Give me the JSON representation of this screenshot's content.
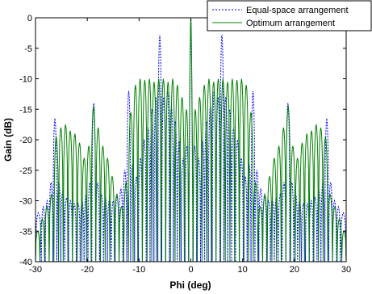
{
  "chart_data": {
    "type": "line",
    "title": "",
    "xlabel": "Phi (deg)",
    "ylabel": "Gain (dB)",
    "xlim": [
      -30,
      30
    ],
    "ylim": [
      -40,
      0
    ],
    "xticks": [
      "-30",
      "-20",
      "-10",
      "0",
      "10",
      "20",
      "30"
    ],
    "yticks": [
      "0",
      "-5",
      "-10",
      "-15",
      "-20",
      "-25",
      "-30",
      "-35",
      "-40"
    ],
    "grid": false,
    "legend_position": "top-right",
    "series": [
      {
        "name": "Equal-space arrangement",
        "style": "dashed",
        "color": "#0000ff",
        "main_lobe": {
          "peak": 0,
          "halfwidth": 0.4
        },
        "lobes": [
          [
            0.75,
            -21
          ],
          [
            1.5,
            -23
          ],
          [
            2.25,
            -20
          ],
          [
            3.0,
            -17
          ],
          [
            3.75,
            -14.5
          ],
          [
            4.5,
            -12
          ],
          [
            5.25,
            -13
          ],
          [
            6.0,
            -2.8
          ],
          [
            6.75,
            -13
          ],
          [
            7.5,
            -15
          ],
          [
            8.25,
            -18
          ],
          [
            9.0,
            -20
          ],
          [
            9.75,
            -23
          ],
          [
            10.5,
            -26
          ],
          [
            11.25,
            -24
          ],
          [
            12.0,
            -12
          ],
          [
            12.75,
            -25
          ],
          [
            13.5,
            -28
          ],
          [
            14.25,
            -29
          ],
          [
            15.0,
            -30
          ],
          [
            15.75,
            -30
          ],
          [
            16.5,
            -29.5
          ],
          [
            17.25,
            -29
          ],
          [
            18.0,
            -27
          ],
          [
            18.75,
            -14
          ],
          [
            19.5,
            -27
          ],
          [
            20.25,
            -29
          ],
          [
            21.0,
            -30
          ],
          [
            21.75,
            -30.5
          ],
          [
            22.5,
            -30.5
          ],
          [
            23.25,
            -30
          ],
          [
            24.0,
            -29.5
          ],
          [
            24.75,
            -28.5
          ],
          [
            25.5,
            -27
          ],
          [
            26.25,
            -16.5
          ],
          [
            27.0,
            -27
          ],
          [
            27.75,
            -30
          ],
          [
            28.5,
            -31
          ],
          [
            29.25,
            -32
          ]
        ],
        "null_depth": -40
      },
      {
        "name": "Optimum arrangement",
        "style": "solid",
        "color": "#008000",
        "main_lobe": {
          "peak": 0,
          "halfwidth": 0.45
        },
        "lobes": [
          [
            0.8,
            -15
          ],
          [
            1.7,
            -13
          ],
          [
            2.6,
            -11
          ],
          [
            3.5,
            -10
          ],
          [
            4.4,
            -10.5
          ],
          [
            5.3,
            -10
          ],
          [
            6.2,
            -10
          ],
          [
            7.1,
            -10.5
          ],
          [
            8.0,
            -10
          ],
          [
            8.9,
            -10.2
          ],
          [
            9.8,
            -10
          ],
          [
            10.7,
            -11
          ],
          [
            11.6,
            -15.5
          ],
          [
            12.5,
            -27
          ],
          [
            13.4,
            -31
          ],
          [
            14.3,
            -29
          ],
          [
            15.2,
            -26
          ],
          [
            16.1,
            -23
          ],
          [
            17.0,
            -21
          ],
          [
            17.9,
            -18
          ],
          [
            18.8,
            -14.5
          ],
          [
            19.7,
            -21
          ],
          [
            20.6,
            -23
          ],
          [
            21.5,
            -20.5
          ],
          [
            22.4,
            -19
          ],
          [
            23.3,
            -18.5
          ],
          [
            24.2,
            -17.5
          ],
          [
            25.1,
            -18
          ],
          [
            26.0,
            -19.5
          ],
          [
            26.9,
            -29
          ],
          [
            27.8,
            -31
          ],
          [
            28.7,
            -33
          ],
          [
            29.6,
            -35
          ]
        ],
        "null_depth": -40
      }
    ]
  }
}
